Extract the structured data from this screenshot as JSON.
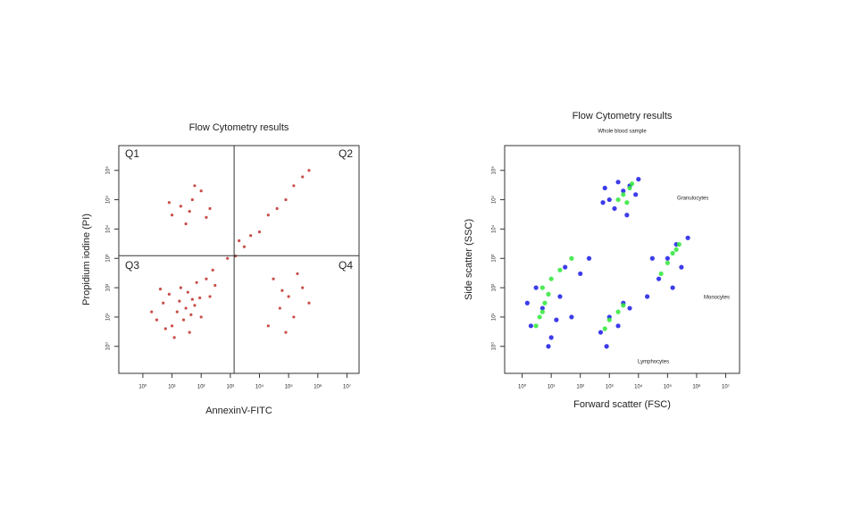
{
  "chart_data": [
    {
      "type": "scatter",
      "title": "Flow Cytometry results",
      "x_label": "AnnexinV-FITC",
      "y_label": "Propidium iodine (PI)",
      "log_x": true,
      "log_y": true,
      "xlim": [
        0.15,
        26000000
      ],
      "ylim": [
        0.12,
        7000000
      ],
      "xticks": [
        {
          "value": 1,
          "label": "10⁰"
        },
        {
          "value": 10,
          "label": "10¹"
        },
        {
          "value": 100,
          "label": "10²"
        },
        {
          "value": 1000,
          "label": "10³"
        },
        {
          "value": 10000,
          "label": "10⁴"
        },
        {
          "value": 100000,
          "label": "10⁵"
        },
        {
          "value": 1000000,
          "label": "10⁶"
        },
        {
          "value": 10000000,
          "label": "10⁷"
        }
      ],
      "yticks": [
        {
          "value": 1,
          "label": "10⁰"
        },
        {
          "value": 10,
          "label": "10¹"
        },
        {
          "value": 100,
          "label": "10²"
        },
        {
          "value": 1000,
          "label": "10³"
        },
        {
          "value": 10000,
          "label": "10⁴"
        },
        {
          "value": 100000,
          "label": "10⁵"
        },
        {
          "value": 1000000,
          "label": "10⁶"
        }
      ],
      "quadrant_gate": {
        "x": 1350,
        "y": 1230
      },
      "quadrant_labels": [
        "Q1",
        "Q2",
        "Q3",
        "Q4"
      ],
      "series": [
        {
          "color": "#c0302a",
          "x": [
            30,
            10,
            50,
            5,
            100,
            20,
            3,
            200,
            15,
            40,
            8,
            70,
            25,
            2,
            150,
            60,
            12,
            300,
            35,
            6,
            90,
            18,
            45,
            4,
            250,
            20,
            50,
            10,
            100,
            30,
            200,
            8,
            60,
            150,
            40,
            50000,
            100000,
            20000,
            300000,
            30000,
            150000,
            80000,
            500000,
            60000,
            200000,
            800,
            1500,
            3000,
            5000,
            10000,
            20000,
            40000,
            80000,
            150000,
            300000,
            500000,
            2000
          ],
          "y": [
            20,
            5,
            40,
            30,
            10,
            100,
            8,
            50,
            15,
            3,
            60,
            150,
            8,
            15,
            200,
            25,
            2,
            120,
            70,
            4,
            45,
            35,
            12,
            90,
            400,
            60000,
            100000,
            30000,
            200000,
            15000,
            50000,
            80000,
            300000,
            25000,
            40000,
            20,
            50,
            5,
            100,
            200,
            10,
            3,
            30,
            80,
            300,
            1000,
            1200,
            2500,
            6000,
            8000,
            30000,
            50000,
            100000,
            300000,
            600000,
            1000000,
            4000
          ]
        }
      ]
    },
    {
      "type": "scatter",
      "title": "Flow Cytometry results",
      "subtitle": "Whole blood sample",
      "x_label": "Forward scatter (FSC)",
      "y_label": "Side scatter (SSC)",
      "log_x": true,
      "log_y": true,
      "xlim": [
        0.25,
        30000000
      ],
      "ylim": [
        0.12,
        7000000
      ],
      "xticks": [
        {
          "value": 1,
          "label": "10⁰"
        },
        {
          "value": 10,
          "label": "10¹"
        },
        {
          "value": 100,
          "label": "10²"
        },
        {
          "value": 1000,
          "label": "10³"
        },
        {
          "value": 10000,
          "label": "10⁴"
        },
        {
          "value": 100000,
          "label": "10⁵"
        },
        {
          "value": 1000000,
          "label": "10⁶"
        },
        {
          "value": 10000000,
          "label": "10⁷"
        }
      ],
      "yticks": [
        {
          "value": 1,
          "label": "10⁰"
        },
        {
          "value": 10,
          "label": "10¹"
        },
        {
          "value": 100,
          "label": "10²"
        },
        {
          "value": 1000,
          "label": "10³"
        },
        {
          "value": 10000,
          "label": "10⁴"
        },
        {
          "value": 100000,
          "label": "10⁵"
        },
        {
          "value": 1000000,
          "label": "10⁶"
        }
      ],
      "annotations": [
        "Granulocytes",
        "Monocytes",
        "Lymphocytes"
      ],
      "series": [
        {
          "color": "#1a1ae6",
          "x": [
            1000,
            3000,
            5000,
            1500,
            8000,
            600,
            2000,
            10000,
            4000,
            700,
            2,
            5,
            10,
            3,
            20,
            50,
            100,
            8,
            30,
            200,
            1.5,
            15,
            500,
            1000,
            2000,
            3000,
            800,
            5000,
            20000,
            50000,
            100000,
            200000,
            300000,
            30000,
            150000,
            500000
          ],
          "y": [
            100000,
            200000,
            300000,
            50000,
            150000,
            80000,
            400000,
            500000,
            30000,
            250000,
            5,
            20,
            2,
            100,
            50,
            10,
            300,
            1,
            500,
            1000,
            30,
            8,
            3,
            10,
            5,
            30,
            1,
            20,
            50,
            200,
            1000,
            3000,
            500,
            1000,
            100,
            5000
          ]
        },
        {
          "color": "#2ee83a",
          "x": [
            3000,
            5000,
            2000,
            4000,
            6000,
            4,
            6,
            3,
            8,
            5,
            10,
            20,
            5,
            50,
            1000,
            2000,
            700,
            3000,
            100000,
            150000,
            200000,
            60000,
            250000
          ],
          "y": [
            150000,
            250000,
            100000,
            80000,
            350000,
            10,
            30,
            5,
            60,
            15,
            200,
            400,
            100,
            1000,
            8,
            15,
            4,
            25,
            700,
            1500,
            2000,
            300,
            3000
          ]
        }
      ]
    }
  ]
}
